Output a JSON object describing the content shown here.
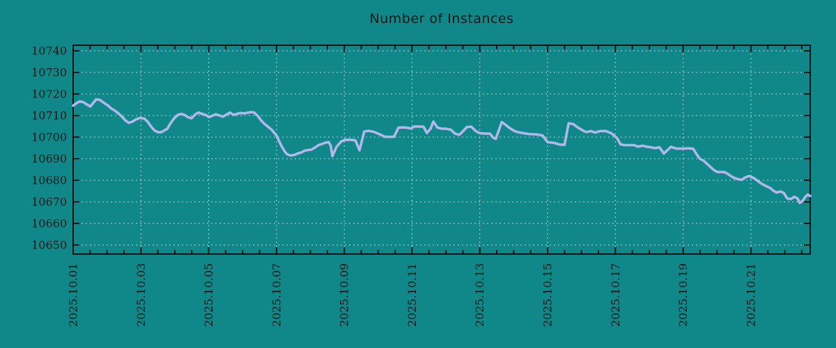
{
  "title": "Number of Instances",
  "colors": {
    "background": "#10888a",
    "line": "#b2b8ea",
    "grid": "#c4cfcf",
    "axis": "#0a1414",
    "text": "#0a1414"
  },
  "chart_data": {
    "type": "line",
    "title": "Number of Instances",
    "xlabel": "",
    "ylabel": "",
    "legend_position": "none",
    "grid": "dashed",
    "x_tick_labels": [
      "2025.10.01",
      "2025.10.03",
      "2025.10.05",
      "2025.10.07",
      "2025.10.09",
      "2025.10.11",
      "2025.10.13",
      "2025.10.15",
      "2025.10.17",
      "2025.10.19",
      "2025.10.21"
    ],
    "x_tick_days": [
      1,
      3,
      5,
      7,
      9,
      11,
      13,
      15,
      17,
      19,
      21
    ],
    "x_minor_tick_step_days": 0.5,
    "xlim_days": [
      1.0,
      22.75
    ],
    "y_ticks": [
      10650,
      10660,
      10670,
      10680,
      10690,
      10700,
      10710,
      10720,
      10730,
      10740
    ],
    "ylim": [
      10645.8,
      10742.6
    ],
    "series": [
      {
        "name": "instances",
        "points": [
          [
            1.0,
            10714.6
          ],
          [
            1.1,
            10715.8
          ],
          [
            1.2,
            10716.6
          ],
          [
            1.3,
            10716.2
          ],
          [
            1.42,
            10715.0
          ],
          [
            1.51,
            10714.2
          ],
          [
            1.6,
            10716.0
          ],
          [
            1.68,
            10717.5
          ],
          [
            1.78,
            10717.3
          ],
          [
            1.93,
            10715.7
          ],
          [
            2.03,
            10714.6
          ],
          [
            2.13,
            10713.2
          ],
          [
            2.24,
            10712.2
          ],
          [
            2.34,
            10710.9
          ],
          [
            2.44,
            10709.5
          ],
          [
            2.54,
            10707.8
          ],
          [
            2.64,
            10706.6
          ],
          [
            2.75,
            10707.2
          ],
          [
            2.85,
            10708.2
          ],
          [
            2.97,
            10708.9
          ],
          [
            3.1,
            10708.6
          ],
          [
            3.2,
            10707.1
          ],
          [
            3.3,
            10704.9
          ],
          [
            3.4,
            10703.1
          ],
          [
            3.5,
            10702.3
          ],
          [
            3.6,
            10702.3
          ],
          [
            3.78,
            10703.9
          ],
          [
            3.88,
            10706.6
          ],
          [
            3.98,
            10708.7
          ],
          [
            4.09,
            10710.3
          ],
          [
            4.19,
            10710.8
          ],
          [
            4.29,
            10710.3
          ],
          [
            4.39,
            10709.2
          ],
          [
            4.49,
            10708.7
          ],
          [
            4.6,
            10710.5
          ],
          [
            4.7,
            10711.4
          ],
          [
            4.8,
            10710.8
          ],
          [
            4.91,
            10710.3
          ],
          [
            5.01,
            10709.3
          ],
          [
            5.21,
            10710.6
          ],
          [
            5.42,
            10709.5
          ],
          [
            5.63,
            10711.4
          ],
          [
            5.73,
            10710.3
          ],
          [
            5.93,
            10711.2
          ],
          [
            6.04,
            10711.0
          ],
          [
            6.14,
            10711.3
          ],
          [
            6.24,
            10711.6
          ],
          [
            6.34,
            10711.4
          ],
          [
            6.45,
            10709.8
          ],
          [
            6.55,
            10707.7
          ],
          [
            6.65,
            10706.1
          ],
          [
            6.76,
            10704.7
          ],
          [
            6.86,
            10703.4
          ],
          [
            7.0,
            10700.7
          ],
          [
            7.1,
            10697.4
          ],
          [
            7.17,
            10695.3
          ],
          [
            7.24,
            10693.5
          ],
          [
            7.31,
            10692.1
          ],
          [
            7.41,
            10691.5
          ],
          [
            7.52,
            10691.7
          ],
          [
            7.62,
            10692.4
          ],
          [
            7.72,
            10692.8
          ],
          [
            7.83,
            10693.7
          ],
          [
            7.93,
            10694.0
          ],
          [
            8.03,
            10694.2
          ],
          [
            8.14,
            10695.2
          ],
          [
            8.24,
            10696.3
          ],
          [
            8.34,
            10696.8
          ],
          [
            8.44,
            10697.4
          ],
          [
            8.54,
            10697.7
          ],
          [
            8.6,
            10696.0
          ],
          [
            8.65,
            10691.2
          ],
          [
            8.77,
            10695.5
          ],
          [
            8.91,
            10698.0
          ],
          [
            9.02,
            10698.7
          ],
          [
            9.12,
            10698.8
          ],
          [
            9.22,
            10698.7
          ],
          [
            9.33,
            10698.5
          ],
          [
            9.45,
            10693.9
          ],
          [
            9.59,
            10702.6
          ],
          [
            9.7,
            10702.9
          ],
          [
            9.81,
            10702.7
          ],
          [
            9.88,
            10702.4
          ],
          [
            10.05,
            10701.3
          ],
          [
            10.19,
            10700.2
          ],
          [
            10.33,
            10700.1
          ],
          [
            10.47,
            10700.2
          ],
          [
            10.6,
            10704.4
          ],
          [
            10.7,
            10704.5
          ],
          [
            10.83,
            10704.4
          ],
          [
            10.97,
            10704.0
          ],
          [
            11.07,
            10704.9
          ],
          [
            11.2,
            10704.9
          ],
          [
            11.34,
            10704.8
          ],
          [
            11.44,
            10701.9
          ],
          [
            11.55,
            10704.0
          ],
          [
            11.63,
            10707.2
          ],
          [
            11.75,
            10704.4
          ],
          [
            11.88,
            10703.9
          ],
          [
            12.0,
            10703.9
          ],
          [
            12.15,
            10703.4
          ],
          [
            12.27,
            10701.6
          ],
          [
            12.4,
            10701.1
          ],
          [
            12.52,
            10703.0
          ],
          [
            12.62,
            10704.7
          ],
          [
            12.75,
            10704.8
          ],
          [
            12.88,
            10702.8
          ],
          [
            13.0,
            10701.8
          ],
          [
            13.15,
            10701.7
          ],
          [
            13.3,
            10701.6
          ],
          [
            13.4,
            10699.7
          ],
          [
            13.47,
            10699.2
          ],
          [
            13.65,
            10707.0
          ],
          [
            13.77,
            10705.6
          ],
          [
            13.86,
            10704.4
          ],
          [
            14.0,
            10703.0
          ],
          [
            14.1,
            10702.4
          ],
          [
            14.26,
            10701.9
          ],
          [
            14.47,
            10701.4
          ],
          [
            14.65,
            10701.3
          ],
          [
            14.85,
            10700.8
          ],
          [
            15.0,
            10697.7
          ],
          [
            15.2,
            10697.3
          ],
          [
            15.35,
            10696.6
          ],
          [
            15.5,
            10696.4
          ],
          [
            15.62,
            10706.4
          ],
          [
            15.75,
            10706.1
          ],
          [
            15.9,
            10704.4
          ],
          [
            16.05,
            10703.0
          ],
          [
            16.15,
            10702.3
          ],
          [
            16.28,
            10702.8
          ],
          [
            16.4,
            10702.1
          ],
          [
            16.55,
            10702.8
          ],
          [
            16.72,
            10702.8
          ],
          [
            16.88,
            10701.8
          ],
          [
            17.05,
            10699.6
          ],
          [
            17.15,
            10696.7
          ],
          [
            17.25,
            10696.3
          ],
          [
            17.4,
            10696.3
          ],
          [
            17.55,
            10696.3
          ],
          [
            17.66,
            10695.6
          ],
          [
            17.8,
            10696.0
          ],
          [
            17.92,
            10695.6
          ],
          [
            18.05,
            10695.3
          ],
          [
            18.17,
            10694.9
          ],
          [
            18.3,
            10695.3
          ],
          [
            18.43,
            10692.4
          ],
          [
            18.64,
            10695.5
          ],
          [
            18.8,
            10694.7
          ],
          [
            19.0,
            10694.7
          ],
          [
            19.15,
            10694.8
          ],
          [
            19.3,
            10694.6
          ],
          [
            19.4,
            10692.0
          ],
          [
            19.5,
            10689.9
          ],
          [
            19.6,
            10689.1
          ],
          [
            19.7,
            10687.7
          ],
          [
            19.81,
            10686.1
          ],
          [
            19.91,
            10684.7
          ],
          [
            20.01,
            10683.8
          ],
          [
            20.22,
            10683.8
          ],
          [
            20.32,
            10682.9
          ],
          [
            20.42,
            10681.8
          ],
          [
            20.52,
            10681.0
          ],
          [
            20.63,
            10680.5
          ],
          [
            20.73,
            10680.2
          ],
          [
            20.83,
            10681.3
          ],
          [
            20.94,
            10682.0
          ],
          [
            21.1,
            10680.9
          ],
          [
            21.25,
            10679.1
          ],
          [
            21.35,
            10678.1
          ],
          [
            21.45,
            10677.3
          ],
          [
            21.56,
            10676.5
          ],
          [
            21.66,
            10675.2
          ],
          [
            21.76,
            10674.3
          ],
          [
            21.87,
            10674.8
          ],
          [
            21.97,
            10674.1
          ],
          [
            22.07,
            10671.6
          ],
          [
            22.18,
            10671.3
          ],
          [
            22.28,
            10672.4
          ],
          [
            22.38,
            10671.5
          ],
          [
            22.44,
            10669.5
          ],
          [
            22.53,
            10670.5
          ],
          [
            22.6,
            10672.2
          ],
          [
            22.68,
            10673.4
          ],
          [
            22.75,
            10672.7
          ]
        ]
      }
    ]
  }
}
